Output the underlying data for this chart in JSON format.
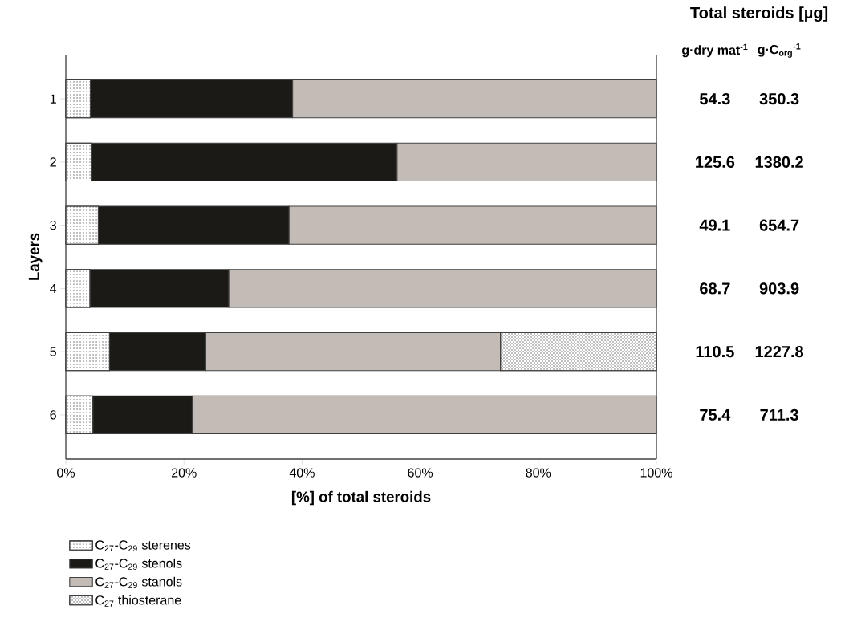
{
  "chart_data": {
    "type": "bar",
    "orientation": "horizontal",
    "stacked": true,
    "xlabel": "[%] of total steroids",
    "ylabel": "Layers",
    "categories": [
      "1",
      "2",
      "3",
      "4",
      "5",
      "6"
    ],
    "series": [
      {
        "name": "C$_{27}$-C$_{29}$ sterenes",
        "color": "#ffffff",
        "values": [
          4.2,
          4.4,
          5.5,
          4.1,
          7.4,
          4.6
        ]
      },
      {
        "name": "C$_{27}$-C$_{29}$ stenols",
        "color": "#1c1a17",
        "values": [
          34.2,
          51.7,
          32.3,
          23.5,
          16.3,
          16.8
        ]
      },
      {
        "name": "C$_{27}$-C$_{29}$ stanols",
        "color": "#c3bbb6",
        "values": [
          61.6,
          43.9,
          62.2,
          72.4,
          49.9,
          78.6
        ]
      },
      {
        "name": "C$_{27}$ thiosterane",
        "color": "#ffffff",
        "values": [
          null,
          null,
          null,
          null,
          26.4,
          null
        ]
      }
    ],
    "xlim": [
      0,
      100
    ],
    "xticks": [
      {
        "value": 0,
        "label": "0%"
      },
      {
        "value": 20,
        "label": "20%"
      },
      {
        "value": 40,
        "label": "40%"
      },
      {
        "value": 60,
        "label": "60%"
      },
      {
        "value": 80,
        "label": "80%"
      },
      {
        "value": 100,
        "label": "100%"
      }
    ],
    "legend": "bottom left",
    "annotations": [
      "Total steroids [µg]",
      "g·dry mat$^{-1}$",
      "g·C$_{org}$$^{-1}$",
      "54.3",
      "350.3",
      "125.6",
      "1380.2",
      "49.1",
      "654.7",
      "68.7",
      "903.9",
      "110.5",
      "1227.8",
      "75.4",
      "711.3"
    ]
  }
}
